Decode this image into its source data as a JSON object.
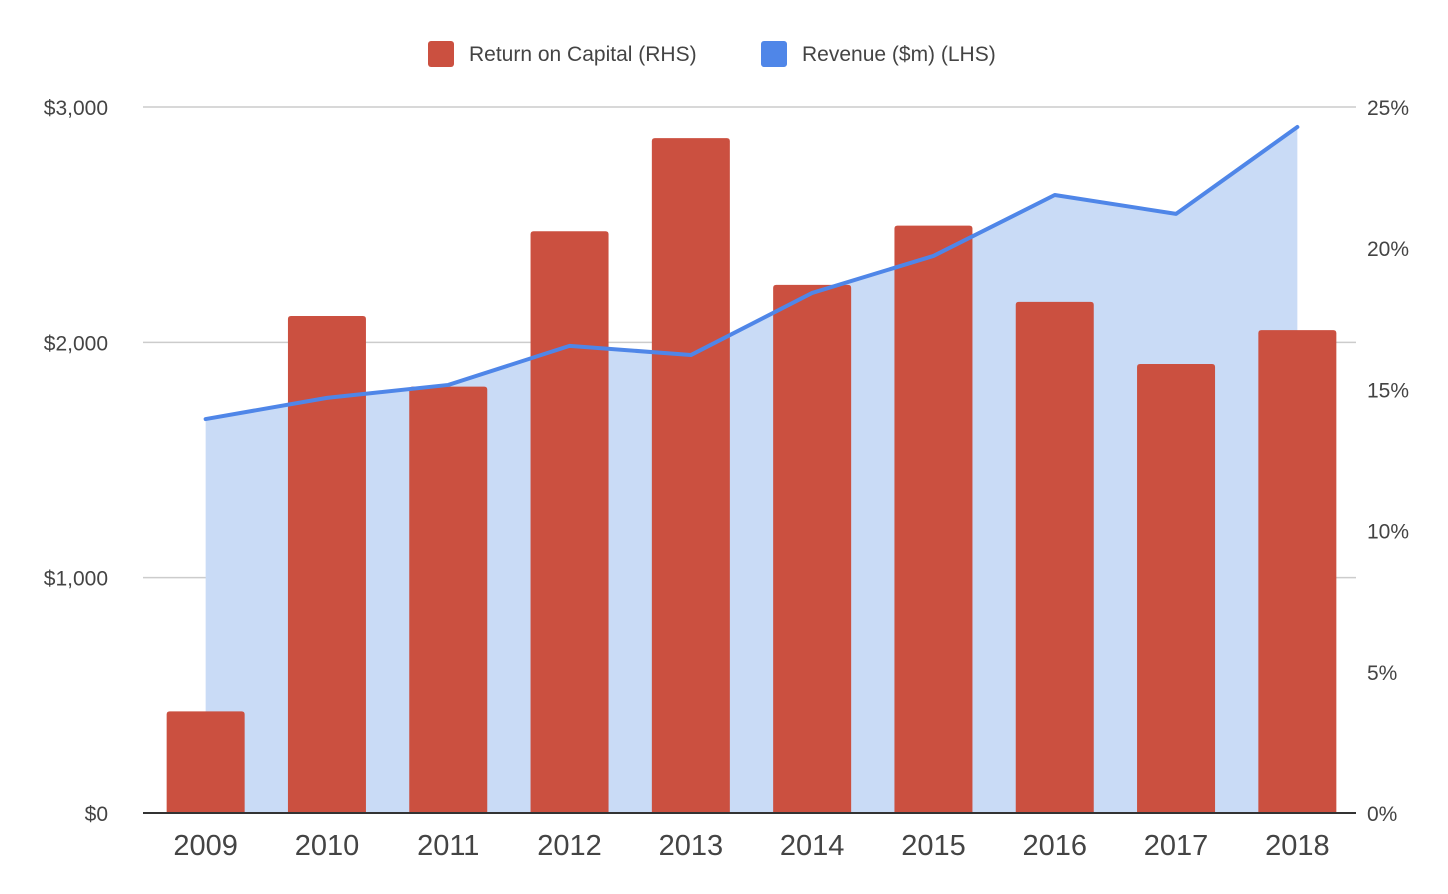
{
  "chart_data": {
    "type": "bar+area",
    "title": "",
    "xlabel": "",
    "categories": [
      "2009",
      "2010",
      "2011",
      "2012",
      "2013",
      "2014",
      "2015",
      "2016",
      "2017",
      "2018"
    ],
    "series": [
      {
        "name": "Return on Capital (RHS)",
        "type": "bar",
        "axis": "right",
        "color": "#cb5040",
        "values": [
          3.6,
          17.6,
          15.1,
          20.6,
          23.9,
          18.7,
          20.8,
          18.1,
          15.9,
          17.1
        ]
      },
      {
        "name": "Revenue ($m) (LHS)",
        "type": "area",
        "axis": "left",
        "color": "#4f86e8",
        "fill": "#c9dbf6",
        "values": [
          1674,
          1764,
          1819,
          1985,
          1946,
          2210,
          2367,
          2626,
          2546,
          2915
        ]
      }
    ],
    "left_axis": {
      "ylim": [
        0,
        3000
      ],
      "ticks": [
        0,
        1000,
        2000,
        3000
      ],
      "tick_labels": [
        "$0",
        "$1,000",
        "$2,000",
        "$3,000"
      ]
    },
    "right_axis": {
      "ylim": [
        0,
        25
      ],
      "ticks": [
        0,
        5,
        10,
        15,
        20,
        25
      ],
      "tick_labels": [
        "0%",
        "5%",
        "10%",
        "15%",
        "20%",
        "25%"
      ]
    },
    "grid": true,
    "legend": {
      "position": "top-center",
      "entries": [
        "Return on Capital (RHS)",
        "Revenue ($m) (LHS)"
      ]
    }
  }
}
